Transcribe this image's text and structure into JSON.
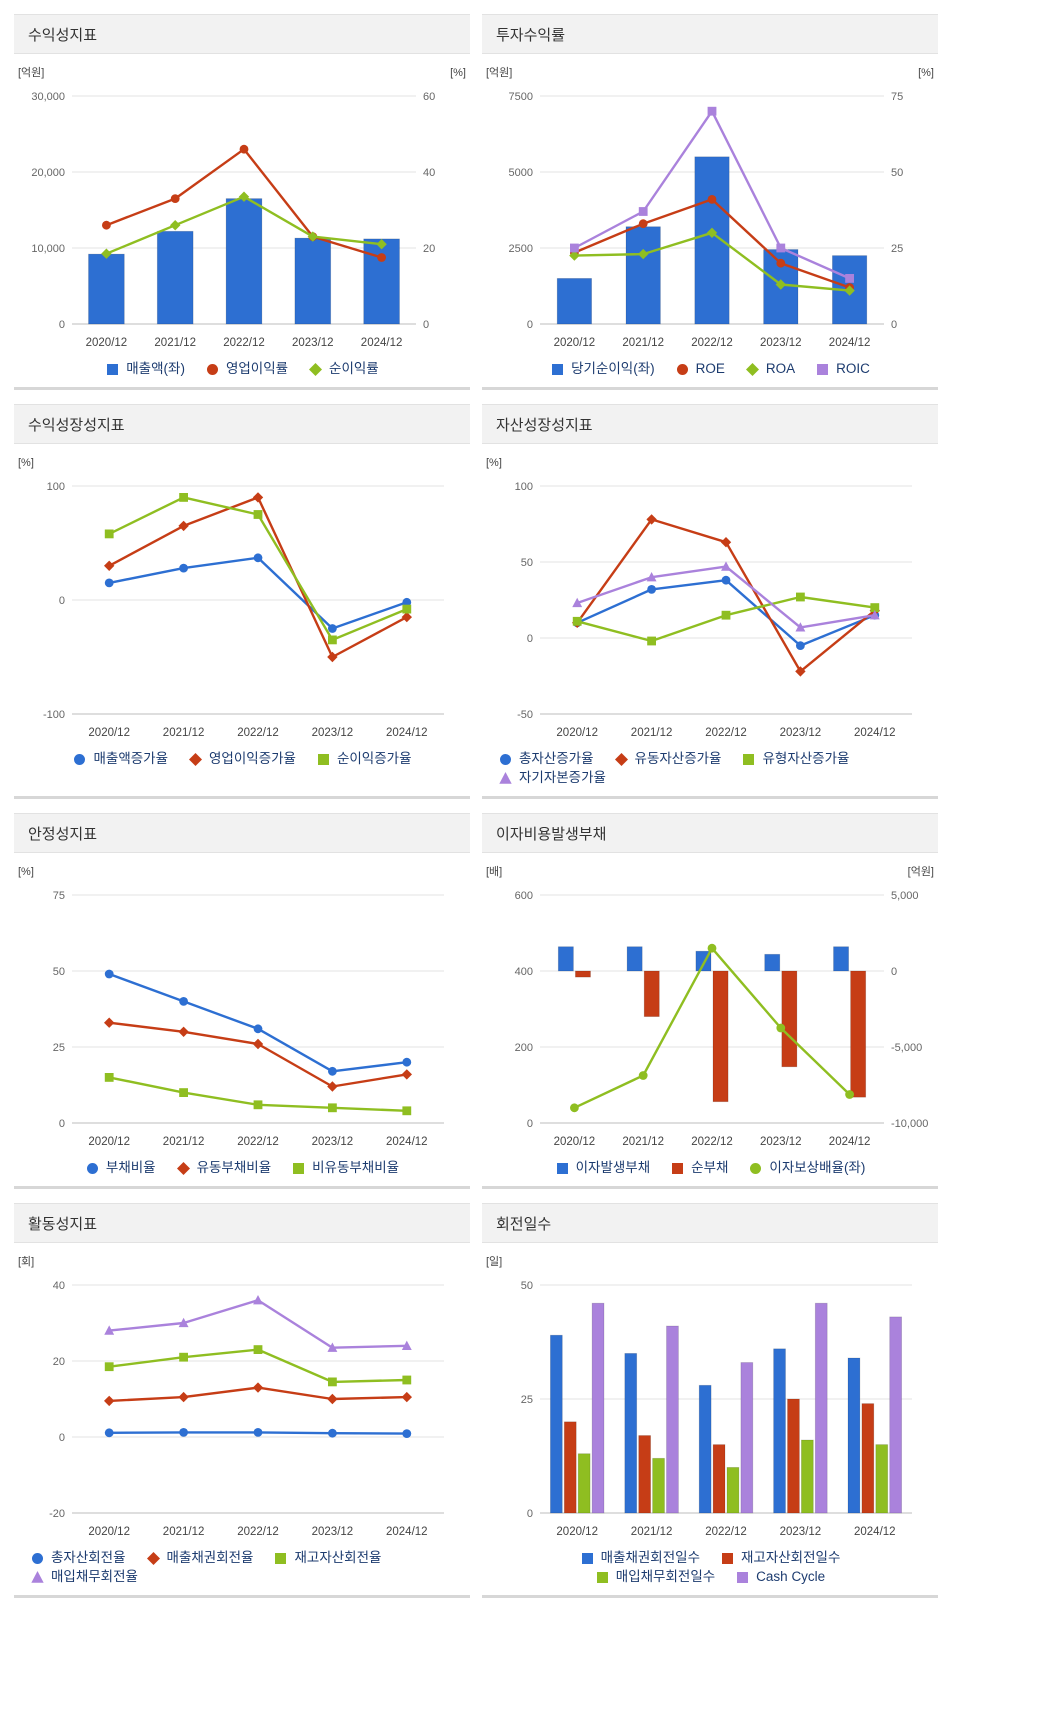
{
  "palette": {
    "blue": "#2d6fd2",
    "red": "#c63d16",
    "green": "#8fbe21",
    "purple": "#aa82dc"
  },
  "chart_data": [
    {
      "title": "수익성지표",
      "type": "combo",
      "categories": [
        "2020/12",
        "2021/12",
        "2022/12",
        "2023/12",
        "2024/12"
      ],
      "left_axis": {
        "label": "[억원]",
        "min": 0,
        "max": 30000,
        "tick_values": [
          0,
          10000,
          20000,
          30000
        ],
        "tick_labels": [
          "0",
          "10,000",
          "20,000",
          "30,000"
        ]
      },
      "right_axis": {
        "label": "[%]",
        "min": 0,
        "max": 60,
        "tick_values": [
          0,
          20,
          40,
          60
        ],
        "tick_labels": [
          "0",
          "20",
          "40",
          "60"
        ]
      },
      "bar_frac": 0.52,
      "legend_align": "center",
      "legend_rows": [
        [
          0,
          1,
          2
        ]
      ],
      "series": [
        {
          "name": "매출액(좌)",
          "type": "bar",
          "axis": "left",
          "color": "#2d6fd2",
          "values": [
            9200,
            12200,
            16500,
            11300,
            11200
          ]
        },
        {
          "name": "영업이익률",
          "type": "line",
          "axis": "right",
          "marker": "circle",
          "color": "#c63d16",
          "values": [
            26,
            33,
            46,
            23,
            17.5
          ]
        },
        {
          "name": "순이익률",
          "type": "line",
          "axis": "right",
          "marker": "diamond",
          "color": "#8fbe21",
          "values": [
            18.5,
            26,
            33.5,
            23,
            21
          ]
        }
      ]
    },
    {
      "title": "투자수익률",
      "type": "combo",
      "categories": [
        "2020/12",
        "2021/12",
        "2022/12",
        "2023/12",
        "2024/12"
      ],
      "left_axis": {
        "label": "[억원]",
        "min": 0,
        "max": 7500,
        "tick_values": [
          0,
          2500,
          5000,
          7500
        ],
        "tick_labels": [
          "0",
          "2500",
          "5000",
          "7500"
        ]
      },
      "right_axis": {
        "label": "[%]",
        "min": 0,
        "max": 75,
        "tick_values": [
          0,
          25,
          50,
          75
        ],
        "tick_labels": [
          "0",
          "25",
          "50",
          "75"
        ]
      },
      "bar_frac": 0.5,
      "legend_align": "center",
      "legend_rows": [
        [
          0,
          1,
          2,
          3
        ]
      ],
      "series": [
        {
          "name": "당기순이익(좌)",
          "type": "bar",
          "axis": "left",
          "color": "#2d6fd2",
          "values": [
            1500,
            3200,
            5500,
            2450,
            2250
          ]
        },
        {
          "name": "ROE",
          "type": "line",
          "axis": "right",
          "marker": "circle",
          "color": "#c63d16",
          "values": [
            23.5,
            33,
            41,
            20,
            12
          ]
        },
        {
          "name": "ROA",
          "type": "line",
          "axis": "right",
          "marker": "diamond",
          "color": "#8fbe21",
          "values": [
            22.5,
            23,
            30,
            13,
            11
          ]
        },
        {
          "name": "ROIC",
          "type": "line",
          "axis": "right",
          "marker": "square",
          "color": "#aa82dc",
          "values": [
            25,
            37,
            70,
            25,
            15
          ]
        }
      ]
    },
    {
      "title": "수익성장성지표",
      "type": "line",
      "categories": [
        "2020/12",
        "2021/12",
        "2022/12",
        "2023/12",
        "2024/12"
      ],
      "left_axis": {
        "label": "[%]",
        "min": -100,
        "max": 100,
        "tick_values": [
          -100,
          0,
          100
        ],
        "tick_labels": [
          "-100",
          "0",
          "100"
        ]
      },
      "legend_align": "center",
      "legend_rows": [
        [
          0,
          1,
          2
        ]
      ],
      "series": [
        {
          "name": "매출액증가율",
          "type": "line",
          "axis": "left",
          "marker": "circle",
          "color": "#2d6fd2",
          "values": [
            15,
            28,
            37,
            -25,
            -2
          ]
        },
        {
          "name": "영업이익증가율",
          "type": "line",
          "axis": "left",
          "marker": "diamond",
          "color": "#c63d16",
          "values": [
            30,
            65,
            90,
            -50,
            -15
          ]
        },
        {
          "name": "순이익증가율",
          "type": "line",
          "axis": "left",
          "marker": "square",
          "color": "#8fbe21",
          "values": [
            58,
            90,
            75,
            -35,
            -8
          ]
        }
      ]
    },
    {
      "title": "자산성장성지표",
      "type": "line",
      "categories": [
        "2020/12",
        "2021/12",
        "2022/12",
        "2023/12",
        "2024/12"
      ],
      "left_axis": {
        "label": "[%]",
        "min": -50,
        "max": 100,
        "tick_values": [
          -50,
          0,
          50,
          100
        ],
        "tick_labels": [
          "-50",
          "0",
          "50",
          "100"
        ]
      },
      "legend_align": "left",
      "legend_rows": [
        [
          0,
          1,
          2
        ],
        [
          3
        ]
      ],
      "series": [
        {
          "name": "총자산증가율",
          "type": "line",
          "axis": "left",
          "marker": "circle",
          "color": "#2d6fd2",
          "values": [
            10,
            32,
            38,
            -5,
            15
          ]
        },
        {
          "name": "유동자산증가율",
          "type": "line",
          "axis": "left",
          "marker": "diamond",
          "color": "#c63d16",
          "values": [
            10,
            78,
            63,
            -22,
            18
          ]
        },
        {
          "name": "유형자산증가율",
          "type": "line",
          "axis": "left",
          "marker": "square",
          "color": "#8fbe21",
          "values": [
            11,
            -2,
            15,
            27,
            20
          ]
        },
        {
          "name": "자기자본증가율",
          "type": "line",
          "axis": "left",
          "marker": "triangle",
          "color": "#aa82dc",
          "values": [
            23,
            40,
            47,
            7,
            15
          ]
        }
      ]
    },
    {
      "title": "안정성지표",
      "type": "line",
      "categories": [
        "2020/12",
        "2021/12",
        "2022/12",
        "2023/12",
        "2024/12"
      ],
      "left_axis": {
        "label": "[%]",
        "min": 0,
        "max": 75,
        "tick_values": [
          0,
          25,
          50,
          75
        ],
        "tick_labels": [
          "0",
          "25",
          "50",
          "75"
        ]
      },
      "legend_align": "center",
      "legend_rows": [
        [
          0,
          1,
          2
        ]
      ],
      "series": [
        {
          "name": "부채비율",
          "type": "line",
          "axis": "left",
          "marker": "circle",
          "color": "#2d6fd2",
          "values": [
            49,
            40,
            31,
            17,
            20
          ]
        },
        {
          "name": "유동부채비율",
          "type": "line",
          "axis": "left",
          "marker": "diamond",
          "color": "#c63d16",
          "values": [
            33,
            30,
            26,
            12,
            16
          ]
        },
        {
          "name": "비유동부채비율",
          "type": "line",
          "axis": "left",
          "marker": "square",
          "color": "#8fbe21",
          "values": [
            15,
            10,
            6,
            5,
            4
          ]
        }
      ]
    },
    {
      "title": "이자비용발생부채",
      "type": "combo",
      "categories": [
        "2020/12",
        "2021/12",
        "2022/12",
        "2023/12",
        "2024/12"
      ],
      "left_axis": {
        "label": "[배]",
        "min": 0,
        "max": 600,
        "tick_values": [
          0,
          200,
          400,
          600
        ],
        "tick_labels": [
          "0",
          "200",
          "400",
          "600"
        ]
      },
      "right_axis": {
        "label": "[억원]",
        "min": -10000,
        "max": 5000,
        "tick_values": [
          -10000,
          -5000,
          0,
          5000
        ],
        "tick_labels": [
          "-10,000",
          "-5,000",
          "0",
          "5,000"
        ]
      },
      "bar_frac": 0.22,
      "legend_align": "center",
      "legend_rows": [
        [
          0,
          1,
          2
        ]
      ],
      "series": [
        {
          "name": "이자발생부채",
          "type": "bar",
          "axis": "right",
          "color": "#2d6fd2",
          "values": [
            1600,
            1600,
            1300,
            1100,
            1600
          ]
        },
        {
          "name": "순부채",
          "type": "bar",
          "axis": "right",
          "color": "#c63d16",
          "values": [
            -400,
            -3000,
            -8600,
            -6300,
            -8300
          ]
        },
        {
          "name": "이자보상배율(좌)",
          "type": "line",
          "axis": "left",
          "marker": "circle",
          "color": "#8fbe21",
          "values": [
            40,
            125,
            460,
            250,
            75
          ]
        }
      ]
    },
    {
      "title": "활동성지표",
      "type": "line",
      "categories": [
        "2020/12",
        "2021/12",
        "2022/12",
        "2023/12",
        "2024/12"
      ],
      "left_axis": {
        "label": "[회]",
        "min": -20,
        "max": 40,
        "tick_values": [
          -20,
          0,
          20,
          40
        ],
        "tick_labels": [
          "-20",
          "0",
          "20",
          "40"
        ]
      },
      "legend_align": "left",
      "legend_rows": [
        [
          0,
          1,
          2
        ],
        [
          3
        ]
      ],
      "series": [
        {
          "name": "총자산회전율",
          "type": "line",
          "axis": "left",
          "marker": "circle",
          "color": "#2d6fd2",
          "values": [
            1.1,
            1.2,
            1.2,
            1,
            0.9
          ]
        },
        {
          "name": "매출채권회전율",
          "type": "line",
          "axis": "left",
          "marker": "diamond",
          "color": "#c63d16",
          "values": [
            9.5,
            10.5,
            13,
            10,
            10.5
          ]
        },
        {
          "name": "재고자산회전율",
          "type": "line",
          "axis": "left",
          "marker": "square",
          "color": "#8fbe21",
          "values": [
            18.5,
            21,
            23,
            14.5,
            15
          ]
        },
        {
          "name": "매입채무회전율",
          "type": "line",
          "axis": "left",
          "marker": "triangle",
          "color": "#aa82dc",
          "values": [
            28,
            30,
            36,
            23.5,
            24
          ]
        }
      ]
    },
    {
      "title": "회전일수",
      "type": "bar",
      "categories": [
        "2020/12",
        "2021/12",
        "2022/12",
        "2023/12",
        "2024/12"
      ],
      "left_axis": {
        "label": "[일]",
        "min": 0,
        "max": 50,
        "tick_values": [
          0,
          25,
          50
        ],
        "tick_labels": [
          "0",
          "25",
          "50"
        ]
      },
      "bar_frac": 0.16,
      "legend_align": "center",
      "legend_rows": [
        [
          0,
          1
        ],
        [
          2,
          3
        ]
      ],
      "series": [
        {
          "name": "매출채권회전일수",
          "type": "bar",
          "axis": "left",
          "color": "#2d6fd2",
          "values": [
            39,
            35,
            28,
            36,
            34
          ]
        },
        {
          "name": "재고자산회전일수",
          "type": "bar",
          "axis": "left",
          "color": "#c63d16",
          "values": [
            20,
            17,
            15,
            25,
            24
          ]
        },
        {
          "name": "매입채무회전일수",
          "type": "bar",
          "axis": "left",
          "color": "#8fbe21",
          "values": [
            13,
            12,
            10,
            16,
            15
          ]
        },
        {
          "name": "Cash Cycle",
          "type": "bar",
          "axis": "left",
          "color": "#aa82dc",
          "values": [
            46,
            41,
            33,
            46,
            43
          ]
        }
      ]
    }
  ]
}
